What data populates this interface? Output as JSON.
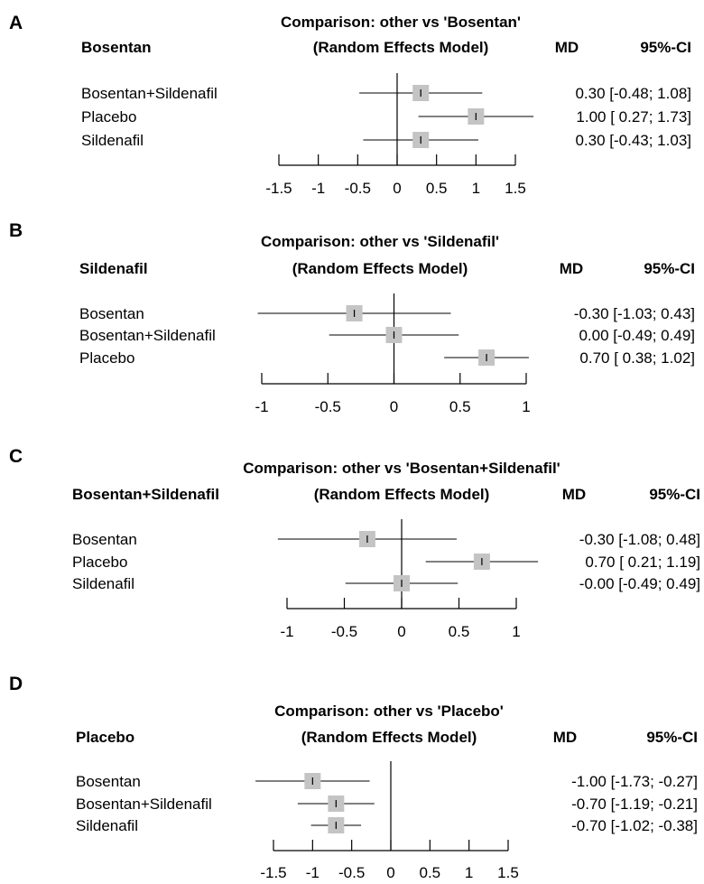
{
  "chart_data": [
    {
      "type": "forest",
      "panel": "A",
      "reference": "Bosentan",
      "title_line1": "Comparison: other vs 'Bosentan'",
      "title_line2": "(Random Effects Model)",
      "col_md": "MD",
      "col_ci": "95%-CI",
      "rows": [
        {
          "label": "Bosentan+Sildenafil",
          "md": 0.3,
          "lower": -0.48,
          "upper": 1.08,
          "md_text": "0.30",
          "ci_text": "[-0.48; 1.08]"
        },
        {
          "label": "Placebo",
          "md": 1.0,
          "lower": 0.27,
          "upper": 1.73,
          "md_text": "1.00",
          "ci_text": "[ 0.27; 1.73]"
        },
        {
          "label": "Sildenafil",
          "md": 0.3,
          "lower": -0.43,
          "upper": 1.03,
          "md_text": "0.30",
          "ci_text": "[-0.43; 1.03]"
        }
      ],
      "xlim": [
        -1.5,
        1.5
      ],
      "ticks": [
        -1.5,
        -1,
        -0.5,
        0,
        0.5,
        1,
        1.5
      ],
      "tick_labels": [
        "-1.5",
        "-1",
        "-0.5",
        "0",
        "0.5",
        "1",
        "1.5"
      ]
    },
    {
      "type": "forest",
      "panel": "B",
      "reference": "Sildenafil",
      "title_line1": "Comparison: other vs 'Sildenafil'",
      "title_line2": "(Random Effects Model)",
      "col_md": "MD",
      "col_ci": "95%-CI",
      "rows": [
        {
          "label": "Bosentan",
          "md": -0.3,
          "lower": -1.03,
          "upper": 0.43,
          "md_text": "-0.30",
          "ci_text": "[-1.03; 0.43]"
        },
        {
          "label": "Bosentan+Sildenafil",
          "md": 0.0,
          "lower": -0.49,
          "upper": 0.49,
          "md_text": "0.00",
          "ci_text": "[-0.49; 0.49]"
        },
        {
          "label": "Placebo",
          "md": 0.7,
          "lower": 0.38,
          "upper": 1.02,
          "md_text": "0.70",
          "ci_text": "[ 0.38; 1.02]"
        }
      ],
      "xlim": [
        -1,
        1
      ],
      "ticks": [
        -1,
        -0.5,
        0,
        0.5,
        1
      ],
      "tick_labels": [
        "-1",
        "-0.5",
        "0",
        "0.5",
        "1"
      ]
    },
    {
      "type": "forest",
      "panel": "C",
      "reference": "Bosentan+Sildenafil",
      "title_line1": "Comparison: other vs 'Bosentan+Sildenafil'",
      "title_line2": "(Random Effects Model)",
      "col_md": "MD",
      "col_ci": "95%-CI",
      "rows": [
        {
          "label": "Bosentan",
          "md": -0.3,
          "lower": -1.08,
          "upper": 0.48,
          "md_text": "-0.30",
          "ci_text": "[-1.08; 0.48]"
        },
        {
          "label": "Placebo",
          "md": 0.7,
          "lower": 0.21,
          "upper": 1.19,
          "md_text": "0.70",
          "ci_text": "[ 0.21; 1.19]"
        },
        {
          "label": "Sildenafil",
          "md": 0.0,
          "lower": -0.49,
          "upper": 0.49,
          "md_text": "-0.00",
          "ci_text": "[-0.49; 0.49]"
        }
      ],
      "xlim": [
        -1,
        1
      ],
      "ticks": [
        -1,
        -0.5,
        0,
        0.5,
        1
      ],
      "tick_labels": [
        "-1",
        "-0.5",
        "0",
        "0.5",
        "1"
      ]
    },
    {
      "type": "forest",
      "panel": "D",
      "reference": "Placebo",
      "title_line1": "Comparison: other vs 'Placebo'",
      "title_line2": "(Random Effects Model)",
      "col_md": "MD",
      "col_ci": "95%-CI",
      "rows": [
        {
          "label": "Bosentan",
          "md": -1.0,
          "lower": -1.73,
          "upper": -0.27,
          "md_text": "-1.00",
          "ci_text": "[-1.73; -0.27]"
        },
        {
          "label": "Bosentan+Sildenafil",
          "md": -0.7,
          "lower": -1.19,
          "upper": -0.21,
          "md_text": "-0.70",
          "ci_text": "[-1.19; -0.21]"
        },
        {
          "label": "Sildenafil",
          "md": -0.7,
          "lower": -1.02,
          "upper": -0.38,
          "md_text": "-0.70",
          "ci_text": "[-1.02; -0.38]"
        }
      ],
      "xlim": [
        -1.5,
        1.5
      ],
      "ticks": [
        -1.5,
        -1,
        -0.5,
        0,
        0.5,
        1,
        1.5
      ],
      "tick_labels": [
        "-1.5",
        "-1",
        "-0.5",
        "0",
        "0.5",
        "1",
        "1.5"
      ]
    }
  ],
  "style": {
    "box_color": "#c4c4c4",
    "line_color": "#000000",
    "ci_line_color": "#000000"
  }
}
